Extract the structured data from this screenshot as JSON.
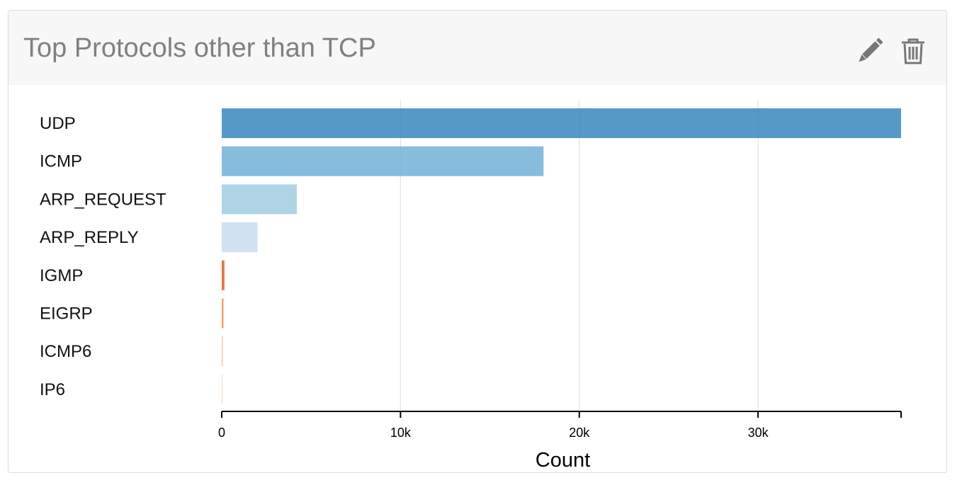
{
  "panel": {
    "title": "Top Protocols other than TCP",
    "edit_icon": "pencil-icon",
    "delete_icon": "trash-icon"
  },
  "chart_data": {
    "type": "bar",
    "orientation": "horizontal",
    "categories": [
      "UDP",
      "ICMP",
      "ARP_REQUEST",
      "ARP_REPLY",
      "IGMP",
      "EIGRP",
      "ICMP6",
      "IP6"
    ],
    "values": [
      38000,
      18000,
      4200,
      2000,
      150,
      100,
      50,
      20
    ],
    "colors": [
      "#3182bd",
      "#6baed6",
      "#9ecae1",
      "#c6dbef",
      "#e6550d",
      "#fd8d3c",
      "#fdae6b",
      "#fdd0a2"
    ],
    "xlabel": "Count",
    "ylabel": "",
    "xlim": [
      0,
      38000
    ],
    "xticks": [
      0,
      10000,
      20000,
      30000
    ],
    "xtick_labels": [
      "0",
      "10k",
      "20k",
      "30k"
    ],
    "grid": "vertical"
  }
}
